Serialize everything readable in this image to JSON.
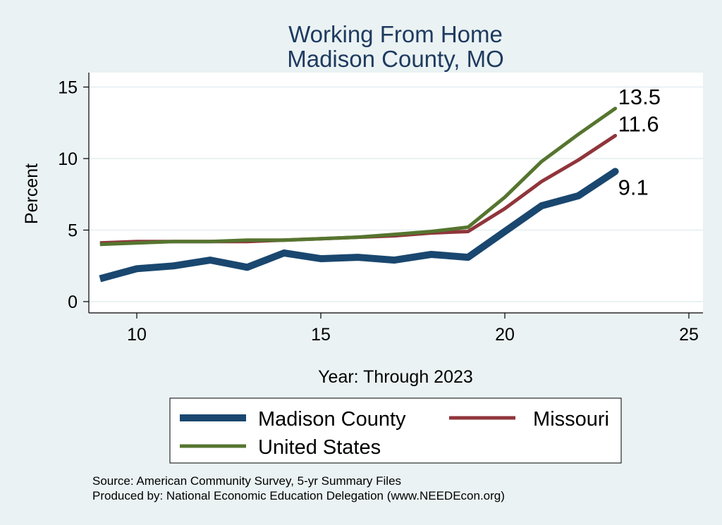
{
  "chart_data": {
    "type": "line",
    "title": "Working From Home",
    "subtitle": "Madison County, MO",
    "xlabel": "Year: Through 2023",
    "ylabel": "Percent",
    "xlim": [
      9,
      25
    ],
    "ylim": [
      0,
      16
    ],
    "xticks": [
      10,
      15,
      20,
      25
    ],
    "yticks": [
      0,
      5,
      10,
      15
    ],
    "grid": "horizontal",
    "legend_position": "bottom",
    "x": [
      9,
      10,
      11,
      12,
      13,
      14,
      15,
      16,
      17,
      18,
      19,
      20,
      21,
      22,
      23
    ],
    "series": [
      {
        "name": "Madison County",
        "color": "#1a476f",
        "values": [
          1.6,
          2.3,
          2.5,
          2.9,
          2.4,
          3.4,
          3.0,
          3.1,
          2.9,
          3.3,
          3.1,
          4.9,
          6.7,
          7.4,
          9.1
        ],
        "end_label": "9.1"
      },
      {
        "name": "Missouri",
        "color": "#90353b",
        "values": [
          4.1,
          4.2,
          4.2,
          4.2,
          4.2,
          4.3,
          4.4,
          4.5,
          4.6,
          4.8,
          4.9,
          6.5,
          8.4,
          9.9,
          11.6
        ],
        "end_label": "11.6"
      },
      {
        "name": "United States",
        "color": "#55752f",
        "values": [
          4.0,
          4.1,
          4.2,
          4.2,
          4.3,
          4.3,
          4.4,
          4.5,
          4.7,
          4.9,
          5.2,
          7.3,
          9.8,
          11.7,
          13.5
        ],
        "end_label": "13.5"
      }
    ],
    "notes": [
      "Source: American Community Survey, 5-yr Summary Files",
      "Produced by: National Economic Education Delegation (www.NEEDEcon.org)"
    ]
  }
}
